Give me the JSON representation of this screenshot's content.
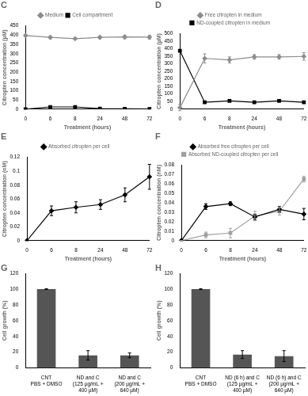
{
  "chart_data": [
    {
      "type": "line",
      "title": "C",
      "categories": [
        "0",
        "6",
        "8",
        "24",
        "48",
        "72"
      ],
      "x_label": "Treatment (hours)",
      "y_label": "Citropten concentration (µM)",
      "ylim": [
        0,
        450
      ],
      "yticks": [
        0,
        50,
        100,
        150,
        200,
        250,
        300,
        350,
        400,
        450
      ],
      "grid": false,
      "legend": "top",
      "series": [
        {
          "name": "Medium",
          "color": "#8c8c8c",
          "marker": "diamond",
          "values": [
            398,
            388,
            381,
            388,
            390,
            389
          ],
          "errors": [
            5,
            8,
            2,
            8,
            10,
            10
          ]
        },
        {
          "name": "Cell compartment",
          "color": "#000000",
          "marker": "square",
          "values": [
            0,
            12,
            12,
            3,
            2,
            1
          ],
          "errors": [
            0,
            2,
            3,
            1,
            1,
            1
          ]
        }
      ]
    },
    {
      "type": "line",
      "title": "D",
      "categories": [
        "0",
        "6",
        "8",
        "24",
        "48",
        "72"
      ],
      "x_label": "Treatment (hours)",
      "y_label": "Citropten concentration (µM)",
      "ylim": [
        0,
        500
      ],
      "yticks": [
        0,
        50,
        100,
        150,
        200,
        250,
        300,
        350,
        400,
        450,
        500
      ],
      "grid": false,
      "legend": "top",
      "series": [
        {
          "name": "Free citropten in medium",
          "color": "#8c8c8c",
          "marker": "diamond",
          "values": [
            10,
            335,
            325,
            345,
            345,
            348
          ],
          "errors": [
            20,
            30,
            20,
            15,
            15,
            25
          ]
        },
        {
          "name": "ND-coupled citropten in medium",
          "color": "#000000",
          "marker": "square",
          "values": [
            385,
            45,
            55,
            45,
            55,
            45
          ],
          "errors": [
            5,
            5,
            5,
            5,
            5,
            5
          ]
        }
      ]
    },
    {
      "type": "line",
      "title": "E",
      "categories": [
        "0",
        "6",
        "8",
        "24",
        "48",
        "72"
      ],
      "x_label": "Treatment (hours)",
      "y_label": "Citropten concentration (nM)",
      "ylim": [
        0,
        0.12
      ],
      "yticks": [
        0,
        0.02,
        0.04,
        0.06,
        0.08,
        0.1,
        0.12
      ],
      "grid": false,
      "legend": "top",
      "series": [
        {
          "name": "Absorbed citropten per cell",
          "color": "#000000",
          "marker": "diamond",
          "values": [
            0,
            0.043,
            0.048,
            0.052,
            0.066,
            0.092
          ],
          "errors": [
            0,
            0.007,
            0.008,
            0.007,
            0.01,
            0.018
          ]
        }
      ]
    },
    {
      "type": "line",
      "title": "F",
      "categories": [
        "0",
        "6",
        "8",
        "24",
        "48",
        "72"
      ],
      "x_label": "Treatment (hours)",
      "y_label": "Citropten concentration (nM)",
      "ylim": [
        0,
        0.08
      ],
      "yticks": [
        0,
        0.01,
        0.02,
        0.03,
        0.04,
        0.05,
        0.06,
        0.07,
        0.08
      ],
      "grid": false,
      "legend": "top",
      "series": [
        {
          "name": "Absorbed free citropten per cell",
          "color": "#000000",
          "marker": "diamond",
          "values": [
            0,
            0.036,
            0.039,
            0.025,
            0.033,
            0.028
          ],
          "errors": [
            0,
            0.003,
            0.002,
            0.003,
            0.003,
            0.006
          ]
        },
        {
          "name": "Absorbed ND-coupled citropten per cell",
          "color": "#a0a0a0",
          "marker": "square",
          "values": [
            0,
            0.006,
            0.008,
            0.026,
            0.031,
            0.065
          ],
          "errors": [
            0,
            0.003,
            0.005,
            0.005,
            0.004,
            0.003
          ]
        }
      ]
    },
    {
      "type": "bar",
      "title": "G",
      "categories": [
        [
          "CNT",
          "PBS + DMSO"
        ],
        [
          "ND and C",
          "(125 µg/mL +",
          "400 µM)"
        ],
        [
          "ND and C",
          "(200 µg/mL +",
          "640 µM)"
        ]
      ],
      "y_label": "Cell growth (%)",
      "ylim": [
        0,
        120
      ],
      "yticks": [
        0,
        20,
        40,
        60,
        80,
        100,
        120
      ],
      "grid": false,
      "color": "#555555",
      "values": [
        100,
        16,
        16
      ],
      "errors": [
        0.5,
        6,
        3
      ]
    },
    {
      "type": "bar",
      "title": "H",
      "categories": [
        [
          "CNT",
          "PBS + DMSO"
        ],
        [
          "ND (6 h) and C",
          "(125 µg/mL +",
          "400 µM)"
        ],
        [
          "ND (6 h) and C",
          "(200 µg/mL +",
          "640 µM)"
        ]
      ],
      "y_label": "Cell growth (%)",
      "ylim": [
        0,
        120
      ],
      "yticks": [
        0,
        20,
        40,
        60,
        80,
        100,
        120
      ],
      "grid": false,
      "color": "#555555",
      "values": [
        100,
        17,
        15
      ],
      "errors": [
        0.5,
        5,
        7
      ]
    }
  ]
}
